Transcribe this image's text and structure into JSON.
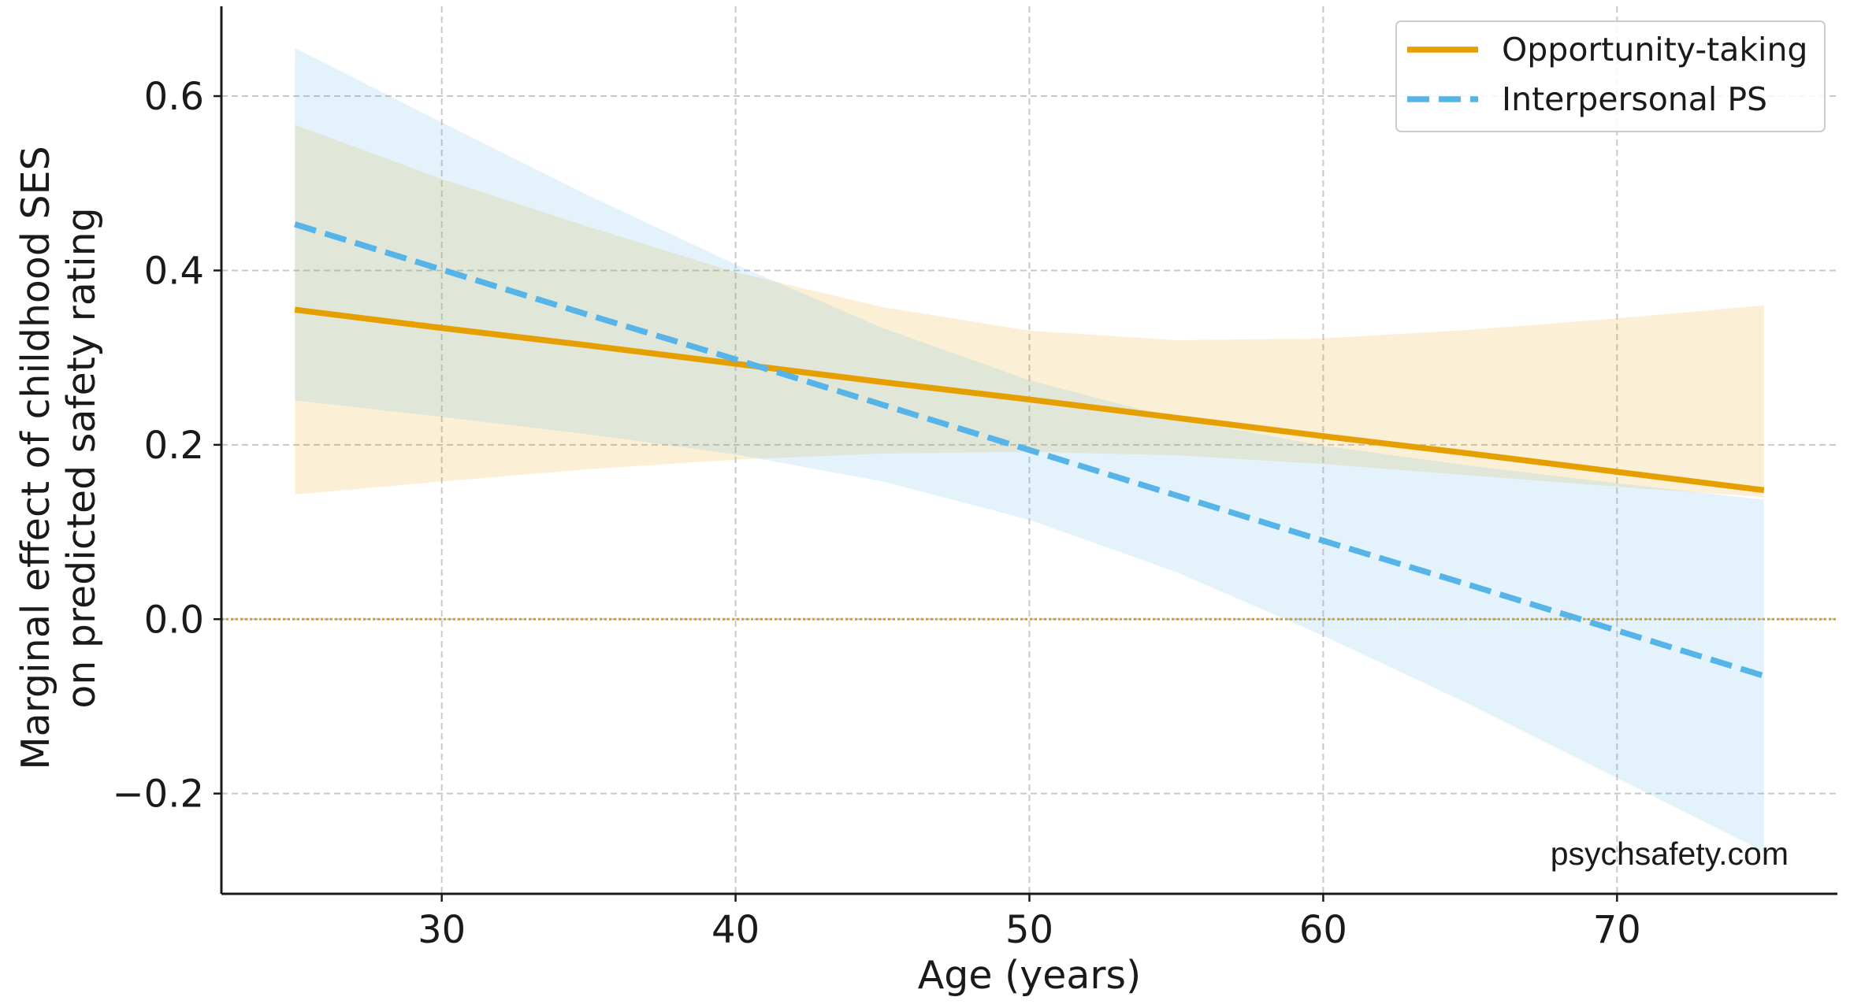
{
  "chart_data": {
    "type": "line",
    "xlabel": "Age (years)",
    "ylabel": [
      "Marginal effect of childhood SES",
      "on predicted safety rating"
    ],
    "annotation": "psychsafety.com",
    "x": [
      25,
      30,
      35,
      40,
      45,
      50,
      55,
      60,
      65,
      70,
      75
    ],
    "series": [
      {
        "name": "Opportunity-taking",
        "color": "#E69F00",
        "dash": "solid",
        "values": [
          0.355,
          0.334,
          0.314,
          0.293,
          0.272,
          0.252,
          0.231,
          0.21,
          0.19,
          0.169,
          0.148
        ],
        "lower": [
          0.143,
          0.158,
          0.172,
          0.183,
          0.19,
          0.192,
          0.188,
          0.178,
          0.165,
          0.152,
          0.14
        ],
        "upper": [
          0.567,
          0.505,
          0.45,
          0.398,
          0.358,
          0.331,
          0.32,
          0.322,
          0.332,
          0.345,
          0.36
        ]
      },
      {
        "name": "Interpersonal PS",
        "color": "#56B4E9",
        "dash": "dashed",
        "values": [
          0.453,
          0.401,
          0.349,
          0.298,
          0.246,
          0.194,
          0.142,
          0.09,
          0.039,
          -0.013,
          -0.065
        ],
        "lower": [
          0.251,
          0.232,
          0.212,
          0.189,
          0.158,
          0.114,
          0.054,
          -0.019,
          -0.098,
          -0.182,
          -0.267
        ],
        "upper": [
          0.655,
          0.57,
          0.486,
          0.407,
          0.334,
          0.274,
          0.23,
          0.199,
          0.176,
          0.156,
          0.137
        ]
      }
    ],
    "reference_line": {
      "y": 0,
      "color": "#E69F00",
      "style": "dotted"
    },
    "xlim": [
      22.5,
      77.5
    ],
    "ylim": [
      -0.315,
      0.703
    ],
    "xticks": [
      30,
      40,
      50,
      60,
      70
    ],
    "yticks": [
      {
        "value": -0.2,
        "label": "−0.2"
      },
      {
        "value": 0,
        "label": "0.0"
      },
      0.2,
      0.4,
      0.6
    ],
    "grid": true,
    "legend": "upper right"
  }
}
